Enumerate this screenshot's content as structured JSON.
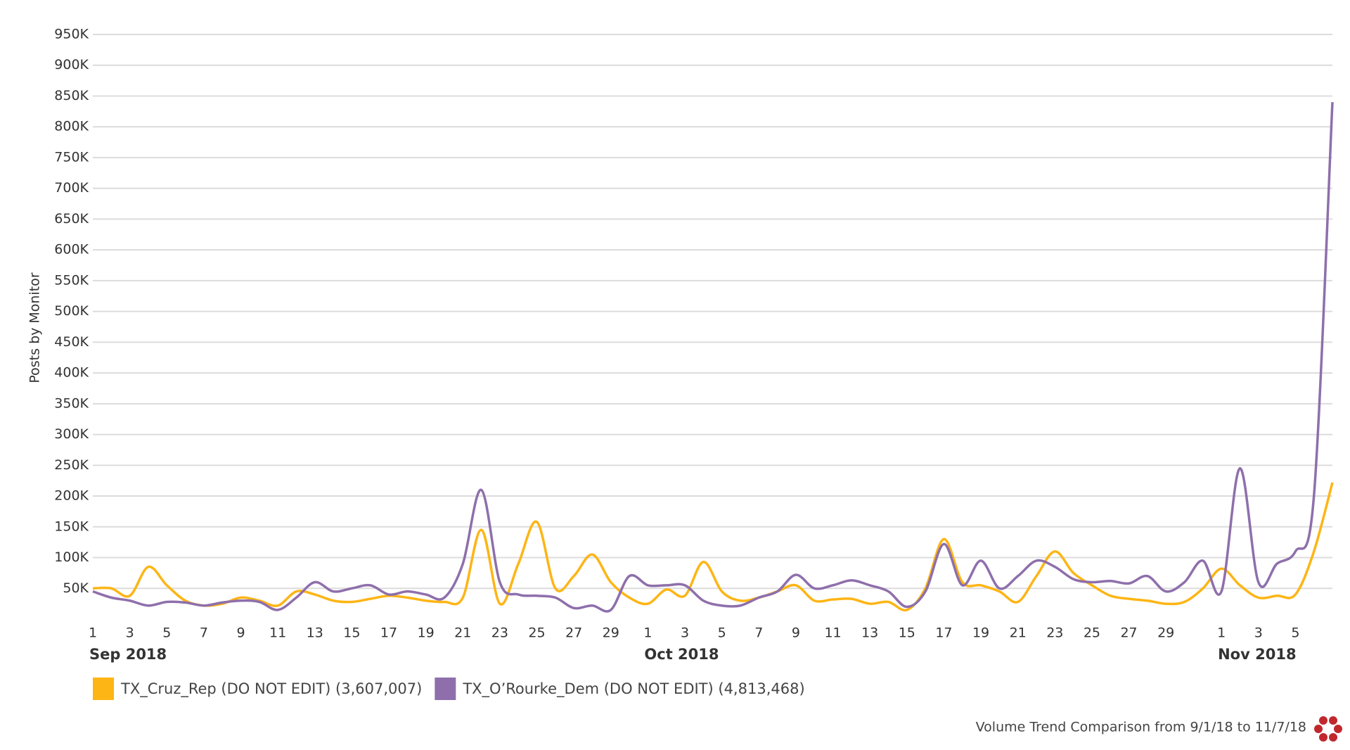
{
  "chart_data": {
    "type": "line",
    "y_label": "Posts by Monitor",
    "footer": "Volume Trend Comparison from 9/1/18 to 11/7/18",
    "x": [
      "2018-09-01",
      "2018-09-02",
      "2018-09-03",
      "2018-09-04",
      "2018-09-05",
      "2018-09-06",
      "2018-09-07",
      "2018-09-08",
      "2018-09-09",
      "2018-09-10",
      "2018-09-11",
      "2018-09-12",
      "2018-09-13",
      "2018-09-14",
      "2018-09-15",
      "2018-09-16",
      "2018-09-17",
      "2018-09-18",
      "2018-09-19",
      "2018-09-20",
      "2018-09-21",
      "2018-09-22",
      "2018-09-23",
      "2018-09-24",
      "2018-09-25",
      "2018-09-26",
      "2018-09-27",
      "2018-09-28",
      "2018-09-29",
      "2018-09-30",
      "2018-10-01",
      "2018-10-02",
      "2018-10-03",
      "2018-10-04",
      "2018-10-05",
      "2018-10-06",
      "2018-10-07",
      "2018-10-08",
      "2018-10-09",
      "2018-10-10",
      "2018-10-11",
      "2018-10-12",
      "2018-10-13",
      "2018-10-14",
      "2018-10-15",
      "2018-10-16",
      "2018-10-17",
      "2018-10-18",
      "2018-10-19",
      "2018-10-20",
      "2018-10-21",
      "2018-10-22",
      "2018-10-23",
      "2018-10-24",
      "2018-10-25",
      "2018-10-26",
      "2018-10-27",
      "2018-10-28",
      "2018-10-29",
      "2018-10-30",
      "2018-10-31",
      "2018-11-01",
      "2018-11-02",
      "2018-11-03",
      "2018-11-04",
      "2018-11-05",
      "2018-11-06",
      "2018-11-07"
    ],
    "series": [
      {
        "name": "TX_Cruz_Rep (DO NOT EDIT) (3,607,007)",
        "color": "#fdb515",
        "values": [
          50000,
          50000,
          38000,
          85000,
          55000,
          30000,
          22000,
          25000,
          35000,
          30000,
          22000,
          45000,
          40000,
          30000,
          28000,
          33000,
          38000,
          35000,
          30000,
          28000,
          35000,
          145000,
          25000,
          90000,
          158000,
          50000,
          70000,
          105000,
          60000,
          35000,
          25000,
          48000,
          38000,
          93000,
          45000,
          30000,
          35000,
          45000,
          55000,
          30000,
          32000,
          33000,
          25000,
          28000,
          15000,
          50000,
          130000,
          60000,
          55000,
          45000,
          28000,
          70000,
          110000,
          75000,
          55000,
          38000,
          33000,
          30000,
          25000,
          28000,
          50000,
          82000,
          55000,
          35000,
          38000,
          40000,
          110000,
          222000
        ]
      },
      {
        "name": "TX_O’Rourke_Dem (DO NOT EDIT) (4,813,468)",
        "color": "#8e6fab",
        "values": [
          45000,
          35000,
          30000,
          22000,
          28000,
          27000,
          22000,
          27000,
          30000,
          28000,
          15000,
          35000,
          60000,
          45000,
          50000,
          55000,
          40000,
          45000,
          40000,
          35000,
          90000,
          210000,
          60000,
          40000,
          38000,
          35000,
          18000,
          22000,
          15000,
          70000,
          55000,
          55000,
          55000,
          30000,
          22000,
          22000,
          35000,
          45000,
          72000,
          50000,
          55000,
          63000,
          55000,
          45000,
          20000,
          45000,
          122000,
          55000,
          95000,
          50000,
          70000,
          95000,
          85000,
          65000,
          60000,
          62000,
          58000,
          70000,
          45000,
          60000,
          95000,
          45000,
          245000,
          60000,
          90000,
          110000,
          200000,
          840000
        ]
      }
    ],
    "ylim": [
      0,
      950000
    ],
    "yticks": [
      {
        "value": 50000,
        "label": "50K"
      },
      {
        "value": 100000,
        "label": "100K"
      },
      {
        "value": 150000,
        "label": "150K"
      },
      {
        "value": 200000,
        "label": "200K"
      },
      {
        "value": 250000,
        "label": "250K"
      },
      {
        "value": 300000,
        "label": "300K"
      },
      {
        "value": 350000,
        "label": "350K"
      },
      {
        "value": 400000,
        "label": "400K"
      },
      {
        "value": 450000,
        "label": "450K"
      },
      {
        "value": 500000,
        "label": "500K"
      },
      {
        "value": 550000,
        "label": "550K"
      },
      {
        "value": 600000,
        "label": "600K"
      },
      {
        "value": 650000,
        "label": "650K"
      },
      {
        "value": 700000,
        "label": "700K"
      },
      {
        "value": 750000,
        "label": "750K"
      },
      {
        "value": 800000,
        "label": "800K"
      },
      {
        "value": 850000,
        "label": "850K"
      },
      {
        "value": 900000,
        "label": "900K"
      },
      {
        "value": 950000,
        "label": "950K"
      }
    ],
    "xticks": [
      {
        "value": "2018-09-01",
        "label": "1"
      },
      {
        "value": "2018-09-03",
        "label": "3"
      },
      {
        "value": "2018-09-05",
        "label": "5"
      },
      {
        "value": "2018-09-07",
        "label": "7"
      },
      {
        "value": "2018-09-09",
        "label": "9"
      },
      {
        "value": "2018-09-11",
        "label": "11"
      },
      {
        "value": "2018-09-13",
        "label": "13"
      },
      {
        "value": "2018-09-15",
        "label": "15"
      },
      {
        "value": "2018-09-17",
        "label": "17"
      },
      {
        "value": "2018-09-19",
        "label": "19"
      },
      {
        "value": "2018-09-21",
        "label": "21"
      },
      {
        "value": "2018-09-23",
        "label": "23"
      },
      {
        "value": "2018-09-25",
        "label": "25"
      },
      {
        "value": "2018-09-27",
        "label": "27"
      },
      {
        "value": "2018-09-29",
        "label": "29"
      },
      {
        "value": "2018-10-01",
        "label": "1"
      },
      {
        "value": "2018-10-03",
        "label": "3"
      },
      {
        "value": "2018-10-05",
        "label": "5"
      },
      {
        "value": "2018-10-07",
        "label": "7"
      },
      {
        "value": "2018-10-09",
        "label": "9"
      },
      {
        "value": "2018-10-11",
        "label": "11"
      },
      {
        "value": "2018-10-13",
        "label": "13"
      },
      {
        "value": "2018-10-15",
        "label": "15"
      },
      {
        "value": "2018-10-17",
        "label": "17"
      },
      {
        "value": "2018-10-19",
        "label": "19"
      },
      {
        "value": "2018-10-21",
        "label": "21"
      },
      {
        "value": "2018-10-23",
        "label": "23"
      },
      {
        "value": "2018-10-25",
        "label": "25"
      },
      {
        "value": "2018-10-27",
        "label": "27"
      },
      {
        "value": "2018-10-29",
        "label": "29"
      },
      {
        "value": "2018-11-01",
        "label": "1"
      },
      {
        "value": "2018-11-03",
        "label": "3"
      },
      {
        "value": "2018-11-05",
        "label": "5"
      }
    ],
    "month_labels": [
      {
        "value": "2018-09-01",
        "label": "Sep 2018"
      },
      {
        "value": "2018-10-01",
        "label": "Oct 2018"
      },
      {
        "value": "2018-11-01",
        "label": "Nov 2018"
      }
    ],
    "grid": true
  }
}
